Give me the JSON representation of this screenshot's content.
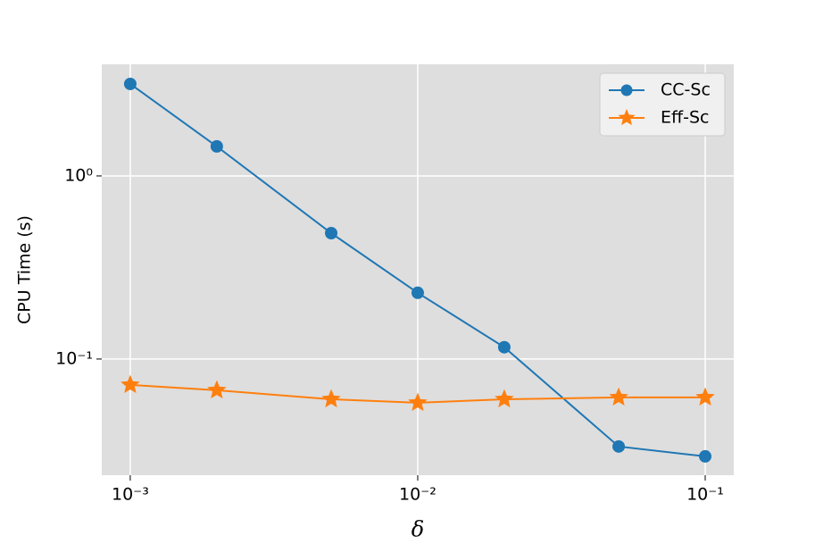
{
  "chart_data": {
    "type": "line",
    "x_label": "δ",
    "y_label": "CPU Time (s)",
    "x": [
      0.001,
      0.002,
      0.005,
      0.01,
      0.02,
      0.05,
      0.1
    ],
    "series": [
      {
        "name": "CC-Sc",
        "color": "#1f77b4",
        "marker": "circle",
        "values": [
          3.18,
          1.45,
          0.487,
          0.23,
          0.116,
          0.0333,
          0.0294
        ]
      },
      {
        "name": "Eff-Sc",
        "color": "#ff7f0e",
        "marker": "star",
        "values": [
          0.0722,
          0.0675,
          0.0603,
          0.0577,
          0.0603,
          0.0617,
          0.0617
        ]
      }
    ],
    "xscale": "log",
    "yscale": "log",
    "xlim": [
      0.000796,
      0.1257
    ],
    "ylim": [
      0.0232,
      4.07
    ],
    "xticks": [
      {
        "value": 0.001,
        "label": "10⁻³"
      },
      {
        "value": 0.01,
        "label": "10⁻²"
      },
      {
        "value": 0.1,
        "label": "10⁻¹"
      }
    ],
    "yticks": [
      {
        "value": 0.1,
        "label": "10⁻¹"
      },
      {
        "value": 1,
        "label": "10⁰"
      }
    ],
    "grid": true,
    "legend": "upper right"
  }
}
